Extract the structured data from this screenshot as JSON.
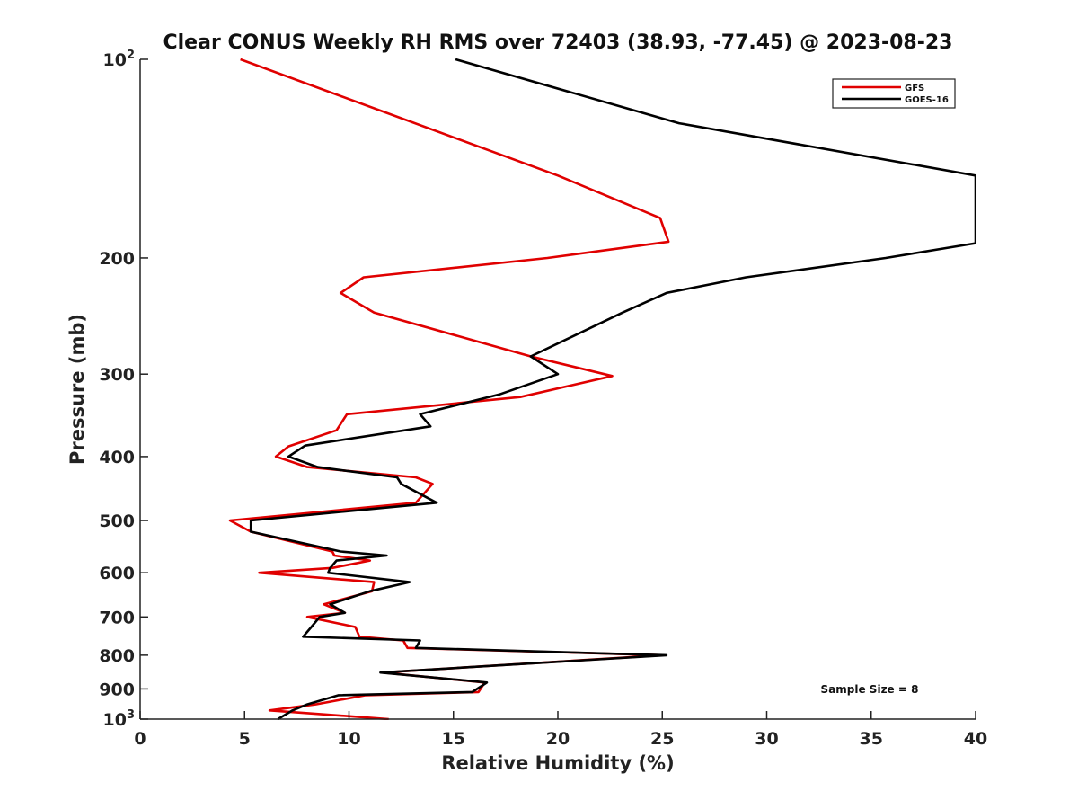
{
  "chart_data": {
    "type": "line",
    "title": "Clear CONUS Weekly RH RMS over 72403 (38.93, -77.45) @ 2023-08-23",
    "xlabel": "Relative Humidity (%)",
    "ylabel": "Pressure (mb)",
    "xlim": [
      0,
      40
    ],
    "ylim": [
      100,
      1000
    ],
    "y_scale": "log",
    "y_reversed": true,
    "x_ticks": [
      0,
      5,
      10,
      15,
      20,
      25,
      30,
      35,
      40
    ],
    "x_tick_labels": [
      "0",
      "5",
      "10",
      "15",
      "20",
      "25",
      "30",
      "35",
      "40"
    ],
    "y_ticks": [
      {
        "value": 100,
        "base": "10",
        "exp": "2"
      },
      {
        "value": 200,
        "base": "200",
        "exp": ""
      },
      {
        "value": 300,
        "base": "300",
        "exp": ""
      },
      {
        "value": 400,
        "base": "400",
        "exp": ""
      },
      {
        "value": 500,
        "base": "500",
        "exp": ""
      },
      {
        "value": 600,
        "base": "600",
        "exp": ""
      },
      {
        "value": 700,
        "base": "700",
        "exp": ""
      },
      {
        "value": 800,
        "base": "800",
        "exp": ""
      },
      {
        "value": 900,
        "base": "900",
        "exp": ""
      },
      {
        "value": 1000,
        "base": "10",
        "exp": "3"
      }
    ],
    "legend_position": "top-right",
    "grid": false,
    "annotation": "Sample Size = 8",
    "series": [
      {
        "name": "GFS",
        "color": "#e00000",
        "points": [
          [
            4.8,
            100
          ],
          [
            20.0,
            150
          ],
          [
            24.9,
            174
          ],
          [
            25.3,
            189
          ],
          [
            19.5,
            200
          ],
          [
            10.7,
            214
          ],
          [
            9.6,
            226
          ],
          [
            11.2,
            242
          ],
          [
            18.7,
            282
          ],
          [
            22.6,
            302
          ],
          [
            18.2,
            325
          ],
          [
            9.9,
            345
          ],
          [
            9.4,
            365
          ],
          [
            7.1,
            386
          ],
          [
            6.5,
            400
          ],
          [
            8.0,
            415
          ],
          [
            13.2,
            430
          ],
          [
            14.0,
            440
          ],
          [
            13.2,
            470
          ],
          [
            4.3,
            500
          ],
          [
            5.3,
            520
          ],
          [
            9.2,
            557
          ],
          [
            9.3,
            565
          ],
          [
            11.0,
            575
          ],
          [
            9.2,
            590
          ],
          [
            5.7,
            600
          ],
          [
            11.2,
            620
          ],
          [
            11.1,
            640
          ],
          [
            8.8,
            670
          ],
          [
            9.8,
            690
          ],
          [
            8.0,
            700
          ],
          [
            10.3,
            725
          ],
          [
            10.5,
            750
          ],
          [
            12.6,
            760
          ],
          [
            12.8,
            780
          ],
          [
            25.0,
            800
          ],
          [
            11.6,
            850
          ],
          [
            16.5,
            880
          ],
          [
            16.2,
            910
          ],
          [
            10.8,
            920
          ],
          [
            8.4,
            950
          ],
          [
            6.2,
            970
          ],
          [
            11.9,
            1000
          ]
        ]
      },
      {
        "name": "GOES-16",
        "color": "#000000",
        "points": [
          [
            15.1,
            100
          ],
          [
            25.8,
            125
          ],
          [
            40.0,
            150
          ],
          [
            40.0,
            190
          ],
          [
            35.7,
            200
          ],
          [
            29.0,
            214
          ],
          [
            25.2,
            226
          ],
          [
            23.1,
            242
          ],
          [
            18.7,
            282
          ],
          [
            20.0,
            300
          ],
          [
            17.2,
            322
          ],
          [
            13.4,
            345
          ],
          [
            13.9,
            360
          ],
          [
            7.9,
            385
          ],
          [
            7.1,
            400
          ],
          [
            8.5,
            415
          ],
          [
            12.3,
            430
          ],
          [
            12.5,
            440
          ],
          [
            14.2,
            470
          ],
          [
            5.3,
            500
          ],
          [
            5.3,
            520
          ],
          [
            9.6,
            557
          ],
          [
            11.8,
            565
          ],
          [
            9.4,
            575
          ],
          [
            9.1,
            590
          ],
          [
            9.0,
            600
          ],
          [
            12.9,
            620
          ],
          [
            11.0,
            640
          ],
          [
            9.1,
            670
          ],
          [
            9.8,
            690
          ],
          [
            8.6,
            700
          ],
          [
            8.2,
            725
          ],
          [
            7.8,
            750
          ],
          [
            13.4,
            760
          ],
          [
            13.2,
            780
          ],
          [
            25.2,
            800
          ],
          [
            11.5,
            850
          ],
          [
            16.6,
            880
          ],
          [
            15.9,
            910
          ],
          [
            9.5,
            920
          ],
          [
            8.0,
            950
          ],
          [
            7.3,
            970
          ],
          [
            6.6,
            1000
          ]
        ]
      }
    ]
  }
}
